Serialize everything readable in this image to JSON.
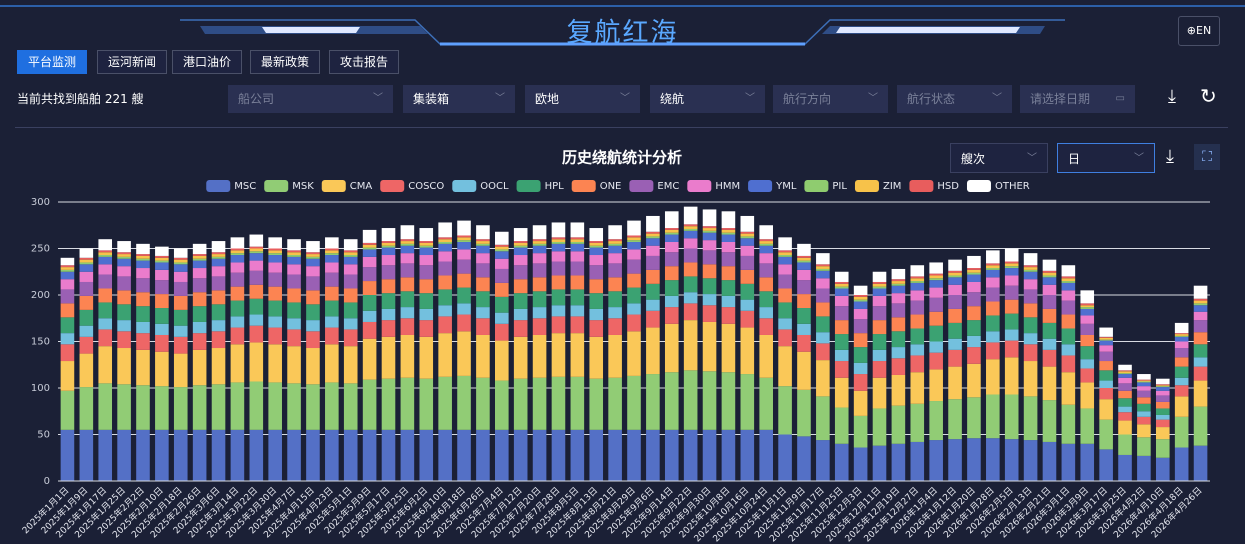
{
  "header": {
    "title": "复航红海",
    "lang": "EN"
  },
  "tabs": [
    "平台监测",
    "运河新闻",
    "港口油价",
    "最新政策",
    "攻击报告"
  ],
  "filters": {
    "result": "当前共找到船舶 221 艘",
    "selects": [
      {
        "text": "船公司",
        "placeholder": true
      },
      {
        "text": "集装箱",
        "placeholder": false
      },
      {
        "text": "欧地",
        "placeholder": false
      },
      {
        "text": "绕航",
        "placeholder": false
      },
      {
        "text": "航行方向",
        "placeholder": true
      },
      {
        "text": "航行状态",
        "placeholder": true
      },
      {
        "text": "请选择日期",
        "placeholder": true
      }
    ]
  },
  "chart_data": {
    "type": "stacked_bar",
    "title": "历史绕航统计分析",
    "unit_select": "艘次",
    "period_select": "日",
    "ylim": [
      0,
      300
    ],
    "yticks": [
      0,
      50,
      100,
      150,
      200,
      250,
      300
    ],
    "grid": true,
    "legend": "top",
    "categories": [
      "2025年1月1日",
      "2025年1月9日",
      "2025年1月17日",
      "2025年1月25日",
      "2025年2月2日",
      "2025年2月10日",
      "2025年2月18日",
      "2025年2月26日",
      "2025年3月6日",
      "2025年3月14日",
      "2025年3月22日",
      "2025年3月30日",
      "2025年4月7日",
      "2025年4月15日",
      "2025年4月23日",
      "2025年5月1日",
      "2025年5月9日",
      "2025年5月17日",
      "2025年5月25日",
      "2025年6月2日",
      "2025年6月10日",
      "2025年6月18日",
      "2025年6月26日",
      "2025年7月4日",
      "2025年7月12日",
      "2025年7月20日",
      "2025年7月28日",
      "2025年8月5日",
      "2025年8月13日",
      "2025年8月21日",
      "2025年8月29日",
      "2025年9月6日",
      "2025年9月14日",
      "2025年9月22日",
      "2025年9月30日",
      "2025年10月8日",
      "2025年10月16日",
      "2025年10月24日",
      "2025年11月1日",
      "2025年11月9日",
      "2025年11月17日",
      "2025年11月25日",
      "2025年12月3日",
      "2025年12月11日",
      "2025年12月19日",
      "2025年12月27日",
      "2026年1月4日",
      "2026年1月12日",
      "2026年1月20日",
      "2026年1月28日",
      "2026年2月5日",
      "2026年2月13日",
      "2026年2月21日",
      "2026年3月1日",
      "2026年3月9日",
      "2026年3月17日",
      "2026年3月25日",
      "2026年4月2日",
      "2026年4月10日",
      "2026年4月18日",
      "2026年4月26日"
    ],
    "series": [
      {
        "name": "MSC",
        "color": "#5470c6",
        "values": [
          55,
          55,
          55,
          55,
          55,
          55,
          55,
          55,
          55,
          55,
          55,
          55,
          55,
          55,
          55,
          55,
          55,
          55,
          55,
          55,
          55,
          55,
          55,
          55,
          55,
          55,
          55,
          55,
          55,
          55,
          55,
          55,
          55,
          55,
          55,
          55,
          55,
          55,
          50,
          48,
          44,
          40,
          36,
          38,
          40,
          42,
          44,
          45,
          46,
          46,
          45,
          44,
          42,
          40,
          40,
          34,
          28,
          27,
          25,
          36,
          38
        ]
      },
      {
        "name": "MSK",
        "color": "#91cc75",
        "values": [
          42,
          46,
          50,
          49,
          48,
          47,
          46,
          48,
          49,
          51,
          52,
          51,
          50,
          49,
          51,
          50,
          54,
          55,
          56,
          55,
          57,
          58,
          56,
          53,
          55,
          56,
          57,
          57,
          55,
          56,
          58,
          60,
          62,
          64,
          63,
          62,
          60,
          56,
          52,
          50,
          47,
          39,
          34,
          40,
          41,
          41,
          42,
          43,
          44,
          47,
          48,
          47,
          45,
          42,
          38,
          32,
          22,
          20,
          20,
          33,
          42
        ]
      },
      {
        "name": "CMA",
        "color": "#fac858",
        "values": [
          32,
          36,
          40,
          39,
          38,
          37,
          36,
          38,
          39,
          41,
          42,
          41,
          40,
          39,
          41,
          40,
          44,
          45,
          46,
          45,
          47,
          48,
          46,
          43,
          45,
          46,
          47,
          47,
          45,
          46,
          48,
          50,
          52,
          54,
          53,
          52,
          50,
          46,
          43,
          41,
          39,
          32,
          27,
          33,
          33,
          34,
          34,
          35,
          36,
          38,
          40,
          38,
          36,
          35,
          28,
          22,
          15,
          14,
          13,
          22,
          28
        ]
      },
      {
        "name": "COSCO",
        "color": "#ee6666",
        "values": [
          18,
          18,
          18,
          18,
          18,
          18,
          18,
          18,
          18,
          18,
          18,
          18,
          18,
          18,
          18,
          18,
          18,
          18,
          18,
          18,
          18,
          18,
          18,
          18,
          18,
          18,
          18,
          18,
          18,
          18,
          18,
          18,
          18,
          18,
          18,
          18,
          18,
          18,
          18,
          18,
          18,
          18,
          18,
          18,
          18,
          18,
          18,
          18,
          18,
          18,
          18,
          18,
          18,
          18,
          15,
          12,
          9,
          8,
          8,
          12,
          15
        ]
      },
      {
        "name": "OOCL",
        "color": "#73c0de",
        "values": [
          12,
          12,
          12,
          12,
          12,
          12,
          12,
          12,
          12,
          12,
          12,
          12,
          12,
          12,
          12,
          12,
          12,
          12,
          12,
          12,
          12,
          12,
          12,
          12,
          12,
          12,
          12,
          12,
          12,
          12,
          12,
          12,
          12,
          12,
          12,
          12,
          12,
          12,
          12,
          12,
          12,
          12,
          12,
          12,
          12,
          12,
          12,
          12,
          12,
          12,
          12,
          12,
          12,
          12,
          10,
          8,
          6,
          6,
          5,
          8,
          10
        ]
      },
      {
        "name": "HPL",
        "color": "#3ba272",
        "values": [
          17,
          17,
          17,
          17,
          17,
          17,
          17,
          17,
          17,
          17,
          17,
          17,
          17,
          17,
          17,
          17,
          17,
          17,
          17,
          17,
          17,
          17,
          17,
          17,
          17,
          17,
          17,
          17,
          17,
          17,
          17,
          17,
          17,
          17,
          17,
          17,
          17,
          17,
          17,
          17,
          17,
          17,
          17,
          17,
          17,
          17,
          17,
          17,
          17,
          17,
          17,
          17,
          17,
          17,
          14,
          11,
          9,
          8,
          7,
          12,
          14
        ]
      },
      {
        "name": "ONE",
        "color": "#fc8452",
        "values": [
          15,
          15,
          15,
          15,
          15,
          15,
          15,
          15,
          15,
          15,
          15,
          15,
          15,
          15,
          15,
          15,
          15,
          15,
          15,
          15,
          15,
          15,
          15,
          15,
          15,
          15,
          15,
          15,
          15,
          15,
          15,
          15,
          15,
          15,
          15,
          15,
          15,
          15,
          15,
          15,
          15,
          15,
          15,
          15,
          15,
          15,
          15,
          15,
          15,
          15,
          15,
          15,
          15,
          15,
          12,
          10,
          8,
          7,
          7,
          10,
          13
        ]
      },
      {
        "name": "EMC",
        "color": "#9a60b4",
        "values": [
          15,
          15,
          15,
          15,
          15,
          15,
          15,
          15,
          15,
          15,
          15,
          15,
          15,
          15,
          15,
          15,
          15,
          15,
          15,
          15,
          15,
          15,
          15,
          15,
          15,
          15,
          15,
          15,
          15,
          15,
          15,
          15,
          15,
          15,
          15,
          15,
          15,
          15,
          15,
          15,
          15,
          15,
          15,
          15,
          15,
          15,
          15,
          15,
          15,
          15,
          15,
          15,
          15,
          15,
          12,
          10,
          8,
          7,
          7,
          10,
          13
        ]
      },
      {
        "name": "HMM",
        "color": "#ea7ccc",
        "values": [
          11,
          11,
          11,
          11,
          11,
          11,
          11,
          11,
          11,
          11,
          11,
          11,
          11,
          11,
          11,
          11,
          11,
          11,
          11,
          11,
          11,
          11,
          11,
          11,
          11,
          11,
          11,
          11,
          11,
          11,
          11,
          11,
          11,
          11,
          11,
          11,
          11,
          11,
          11,
          11,
          11,
          11,
          11,
          11,
          11,
          11,
          11,
          11,
          11,
          11,
          11,
          11,
          11,
          11,
          9,
          7,
          6,
          5,
          5,
          7,
          9
        ]
      },
      {
        "name": "YML",
        "color": "#4f6fd0",
        "values": [
          8,
          8,
          8,
          8,
          8,
          8,
          8,
          8,
          8,
          8,
          8,
          8,
          8,
          8,
          8,
          8,
          8,
          8,
          8,
          8,
          8,
          8,
          8,
          8,
          8,
          8,
          8,
          8,
          8,
          8,
          8,
          8,
          8,
          8,
          8,
          8,
          8,
          8,
          8,
          8,
          8,
          8,
          8,
          8,
          8,
          8,
          8,
          8,
          8,
          8,
          8,
          8,
          8,
          8,
          7,
          5,
          4,
          4,
          4,
          5,
          7
        ]
      },
      {
        "name": "PIL",
        "color": "#8fcc6f",
        "values": [
          2,
          2,
          2,
          2,
          2,
          2,
          2,
          2,
          2,
          2,
          2,
          2,
          2,
          2,
          2,
          2,
          2,
          2,
          2,
          2,
          2,
          2,
          2,
          2,
          2,
          2,
          2,
          2,
          2,
          2,
          2,
          2,
          2,
          2,
          2,
          2,
          2,
          2,
          2,
          2,
          2,
          2,
          2,
          2,
          2,
          2,
          2,
          2,
          2,
          2,
          2,
          2,
          2,
          2,
          2,
          1,
          1,
          1,
          1,
          1,
          2
        ]
      },
      {
        "name": "ZIM",
        "color": "#f7c24a",
        "values": [
          3,
          3,
          3,
          3,
          3,
          3,
          3,
          3,
          3,
          3,
          3,
          3,
          3,
          3,
          3,
          3,
          3,
          3,
          3,
          3,
          3,
          3,
          3,
          3,
          3,
          3,
          3,
          3,
          3,
          3,
          3,
          3,
          3,
          3,
          3,
          3,
          3,
          3,
          3,
          3,
          3,
          3,
          3,
          3,
          3,
          3,
          3,
          3,
          3,
          3,
          3,
          3,
          3,
          3,
          2,
          2,
          2,
          1,
          1,
          2,
          3
        ]
      },
      {
        "name": "HSD",
        "color": "#e85d5d",
        "values": [
          2,
          2,
          2,
          2,
          2,
          2,
          2,
          2,
          2,
          2,
          2,
          2,
          2,
          2,
          2,
          2,
          2,
          2,
          2,
          2,
          2,
          2,
          2,
          2,
          2,
          2,
          2,
          2,
          2,
          2,
          2,
          2,
          2,
          2,
          2,
          2,
          2,
          2,
          2,
          2,
          2,
          2,
          2,
          2,
          2,
          2,
          2,
          2,
          2,
          2,
          2,
          2,
          2,
          2,
          2,
          1,
          1,
          1,
          1,
          1,
          2
        ]
      },
      {
        "name": "OTHER",
        "color": "#ffffff",
        "values": [
          8,
          10,
          12,
          12,
          11,
          10,
          10,
          11,
          12,
          12,
          13,
          12,
          12,
          12,
          12,
          12,
          14,
          14,
          15,
          14,
          16,
          16,
          15,
          14,
          14,
          15,
          16,
          16,
          14,
          15,
          16,
          17,
          18,
          19,
          18,
          18,
          17,
          15,
          14,
          13,
          12,
          11,
          10,
          11,
          11,
          12,
          12,
          12,
          13,
          14,
          14,
          13,
          12,
          12,
          14,
          10,
          6,
          6,
          6,
          11,
          14
        ]
      }
    ]
  }
}
